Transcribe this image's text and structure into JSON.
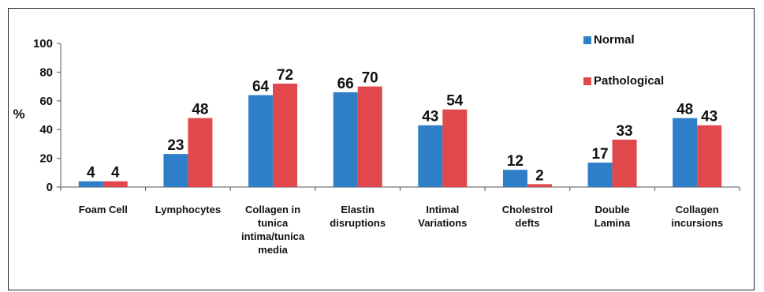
{
  "chart_data": {
    "type": "bar",
    "ylabel": "%",
    "ylim": [
      0,
      100
    ],
    "yticks": [
      "0",
      "20",
      "40",
      "60",
      "80",
      "100"
    ],
    "categories": [
      [
        "Foam Cell"
      ],
      [
        "Lymphocytes"
      ],
      [
        "Collagen in",
        "tunica",
        "intima/tunica",
        "media"
      ],
      [
        "Elastin",
        "disruptions"
      ],
      [
        "Intimal",
        "Variations"
      ],
      [
        "Cholestrol",
        "defts"
      ],
      [
        "Double",
        "Lamina"
      ],
      [
        "Collagen",
        "incursions"
      ]
    ],
    "series": [
      {
        "name": "Normal",
        "color": "#2f7fc8",
        "values": [
          4,
          23,
          64,
          66,
          43,
          12,
          17,
          48
        ]
      },
      {
        "name": "Pathological",
        "color": "#e0484b",
        "values": [
          4,
          48,
          72,
          70,
          54,
          2,
          33,
          43
        ]
      }
    ],
    "legend_position": "top-right",
    "grid": false
  }
}
